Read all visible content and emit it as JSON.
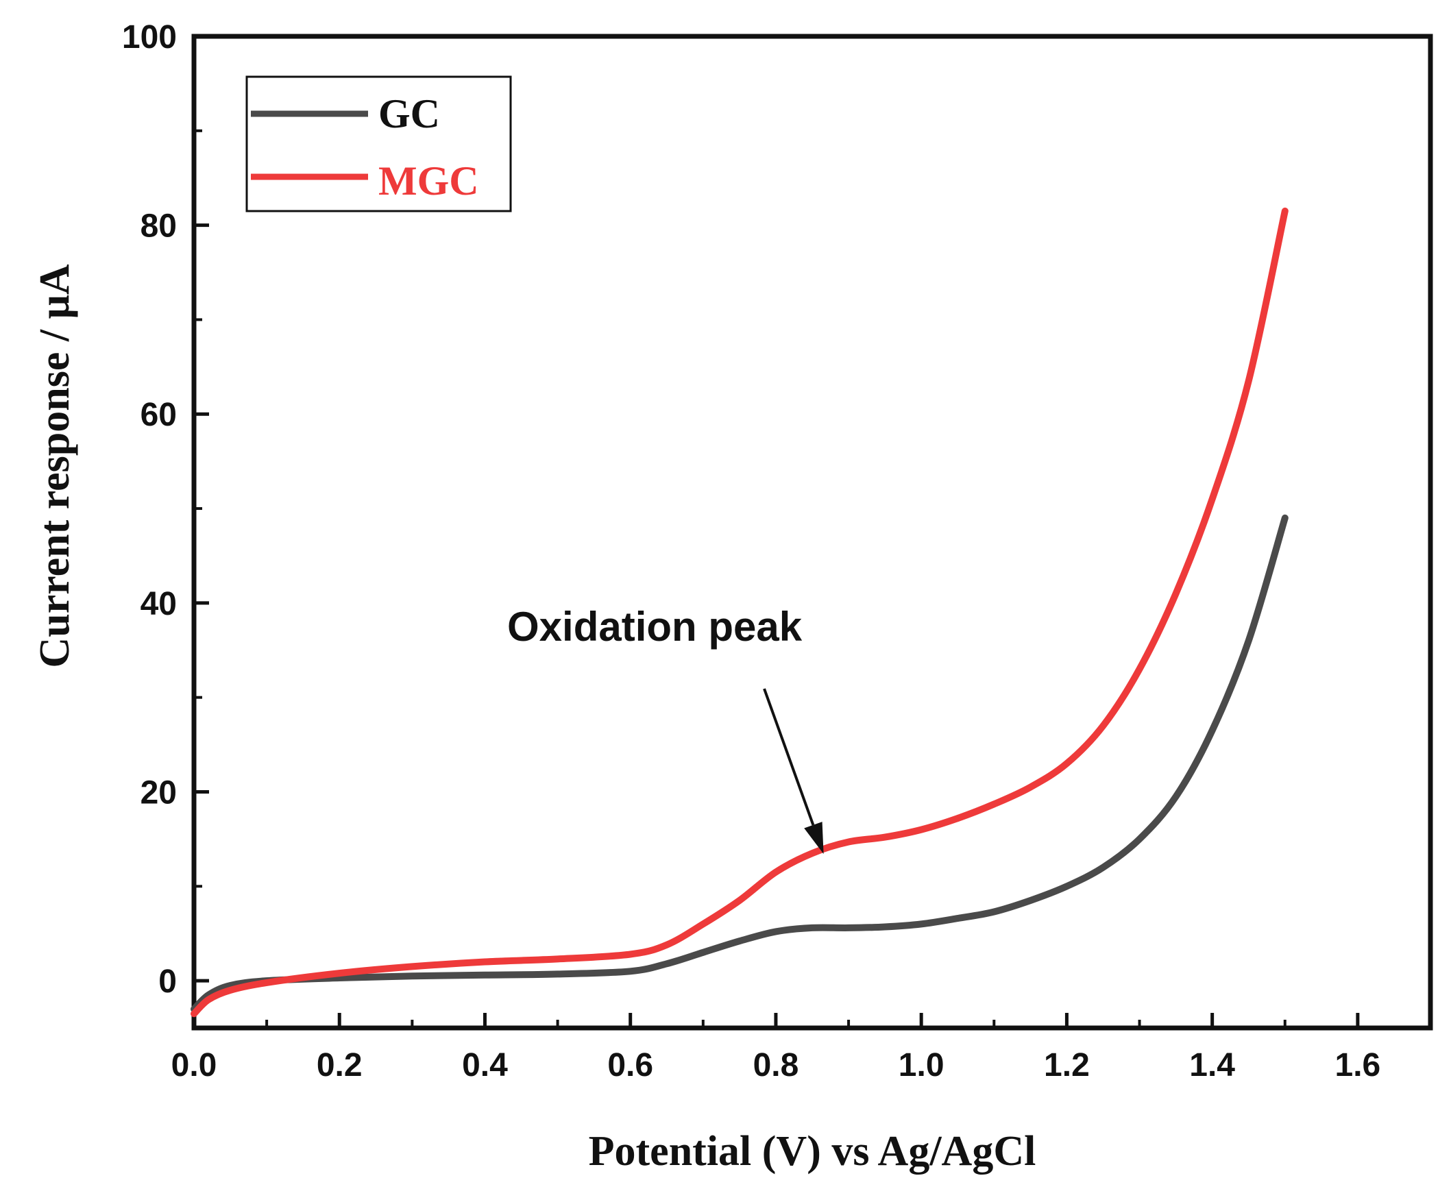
{
  "chart_data": {
    "type": "line",
    "title": "",
    "xlabel": "Potential (V) vs Ag/AgCl",
    "ylabel": "Current response / μA",
    "xlim": [
      0.0,
      1.7
    ],
    "ylim": [
      -5,
      100
    ],
    "x_ticks": [
      0.0,
      0.2,
      0.4,
      0.6,
      0.8,
      1.0,
      1.2,
      1.4,
      1.6
    ],
    "x_tick_labels": [
      "0.0",
      "0.2",
      "0.4",
      "0.6",
      "0.8",
      "1.0",
      "1.2",
      "1.4",
      "1.6"
    ],
    "y_ticks": [
      0,
      20,
      40,
      60,
      80,
      100
    ],
    "y_tick_labels": [
      "0",
      "20",
      "40",
      "60",
      "80",
      "100"
    ],
    "grid": false,
    "legend_position": "top-left",
    "series": [
      {
        "name": "GC",
        "color": "#4a4a4a",
        "x": [
          0.0,
          0.02,
          0.05,
          0.1,
          0.2,
          0.3,
          0.4,
          0.5,
          0.6,
          0.65,
          0.7,
          0.75,
          0.8,
          0.85,
          0.9,
          0.95,
          1.0,
          1.05,
          1.1,
          1.15,
          1.2,
          1.25,
          1.3,
          1.35,
          1.4,
          1.45,
          1.5
        ],
        "y": [
          -3.0,
          -1.5,
          -0.5,
          0.0,
          0.3,
          0.5,
          0.6,
          0.7,
          1.0,
          1.8,
          3.0,
          4.2,
          5.2,
          5.6,
          5.6,
          5.7,
          6.0,
          6.6,
          7.3,
          8.5,
          10.0,
          12.0,
          15.0,
          19.5,
          26.5,
          36.0,
          49.0
        ]
      },
      {
        "name": "MGC",
        "color": "#ee3a3a",
        "x": [
          0.0,
          0.02,
          0.05,
          0.1,
          0.2,
          0.3,
          0.4,
          0.5,
          0.6,
          0.65,
          0.7,
          0.75,
          0.8,
          0.85,
          0.9,
          0.95,
          1.0,
          1.05,
          1.1,
          1.15,
          1.2,
          1.25,
          1.3,
          1.35,
          1.4,
          1.45,
          1.5
        ],
        "y": [
          -3.5,
          -2.0,
          -1.0,
          -0.2,
          0.8,
          1.5,
          2.0,
          2.3,
          2.8,
          3.8,
          6.0,
          8.5,
          11.5,
          13.5,
          14.7,
          15.2,
          16.0,
          17.2,
          18.7,
          20.5,
          23.0,
          27.0,
          33.0,
          41.0,
          51.0,
          63.5,
          81.5
        ]
      }
    ],
    "annotations": [
      {
        "text": "Oxidation peak",
        "target_x": 0.86,
        "target_y": 14.0
      }
    ]
  }
}
